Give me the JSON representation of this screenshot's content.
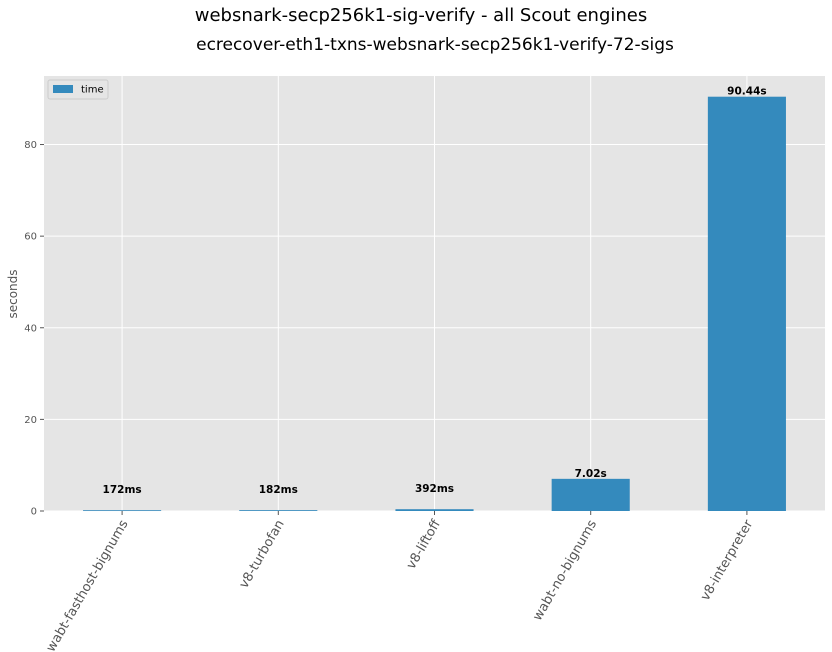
{
  "chart_data": {
    "type": "bar",
    "suptitle": "websnark-secp256k1-sig-verify - all Scout engines",
    "title": "ecrecover-eth1-txns-websnark-secp256k1-verify-72-sigs",
    "ylabel": "seconds",
    "xlabel": "",
    "categories": [
      "wabt-fasthost-bignums",
      "v8-turbofan",
      "v8-liftoff",
      "wabt-no-bignums",
      "v8-interpreter"
    ],
    "series": [
      {
        "name": "time",
        "values": [
          0.172,
          0.182,
          0.392,
          7.02,
          90.44
        ],
        "color": "#348abd"
      }
    ],
    "data_labels": [
      "172ms",
      "182ms",
      "392ms",
      "7.02s",
      "90.44s"
    ],
    "ylim": [
      0,
      94.96
    ],
    "yticks": [
      0,
      20,
      40,
      60,
      80
    ],
    "grid": true,
    "legend_position": "top-left",
    "background_color": "#e5e5e5",
    "grid_color": "#ffffff"
  }
}
